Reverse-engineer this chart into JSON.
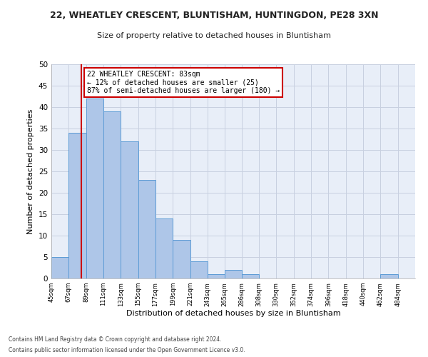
{
  "title1": "22, WHEATLEY CRESCENT, BLUNTISHAM, HUNTINGDON, PE28 3XN",
  "title2": "Size of property relative to detached houses in Bluntisham",
  "xlabel": "Distribution of detached houses by size in Bluntisham",
  "ylabel": "Number of detached properties",
  "bar_values": [
    5,
    34,
    42,
    39,
    32,
    23,
    14,
    9,
    4,
    1,
    2,
    1,
    0,
    0,
    0,
    0,
    0,
    0,
    0,
    1,
    0
  ],
  "bin_labels": [
    "45sqm",
    "67sqm",
    "89sqm",
    "111sqm",
    "133sqm",
    "155sqm",
    "177sqm",
    "199sqm",
    "221sqm",
    "243sqm",
    "265sqm",
    "286sqm",
    "308sqm",
    "330sqm",
    "352sqm",
    "374sqm",
    "396sqm",
    "418sqm",
    "440sqm",
    "462sqm",
    "484sqm"
  ],
  "bar_color": "#aec6e8",
  "bar_edge_color": "#5b9bd5",
  "property_line_x": 83,
  "bin_edges": [
    45,
    67,
    89,
    111,
    133,
    155,
    177,
    199,
    221,
    243,
    265,
    286,
    308,
    330,
    352,
    374,
    396,
    418,
    440,
    462,
    484,
    506
  ],
  "annotation_title": "22 WHEATLEY CRESCENT: 83sqm",
  "annotation_line1": "← 12% of detached houses are smaller (25)",
  "annotation_line2": "87% of semi-detached houses are larger (180) →",
  "annotation_box_color": "#ffffff",
  "annotation_box_edge_color": "#cc0000",
  "vline_color": "#cc0000",
  "ylim": [
    0,
    50
  ],
  "yticks": [
    0,
    5,
    10,
    15,
    20,
    25,
    30,
    35,
    40,
    45,
    50
  ],
  "footer1": "Contains HM Land Registry data © Crown copyright and database right 2024.",
  "footer2": "Contains public sector information licensed under the Open Government Licence v3.0.",
  "bg_color": "#ffffff",
  "plot_bg_color": "#e8eef8",
  "grid_color": "#c8d0e0"
}
